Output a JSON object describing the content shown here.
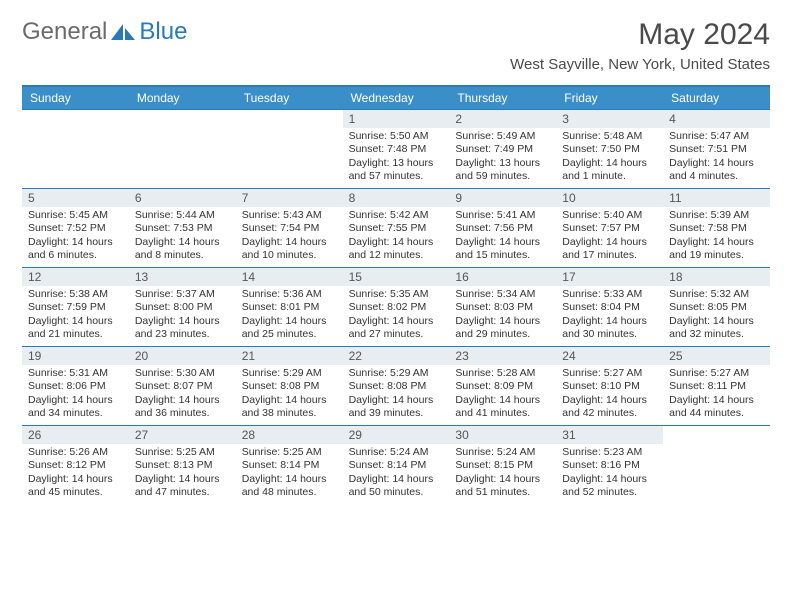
{
  "brand": {
    "left": "General",
    "right": "Blue"
  },
  "title": "May 2024",
  "location": "West Sayville, New York, United States",
  "colors": {
    "accent": "#2a7ab8",
    "header_bg": "#3a8fc9",
    "daynum_bg": "#e8edf1",
    "text_grey": "#4a4a4a"
  },
  "day_headers": [
    "Sunday",
    "Monday",
    "Tuesday",
    "Wednesday",
    "Thursday",
    "Friday",
    "Saturday"
  ],
  "weeks": [
    [
      {
        "num": "",
        "sunrise": "",
        "sunset": "",
        "daylight1": "",
        "daylight2": ""
      },
      {
        "num": "",
        "sunrise": "",
        "sunset": "",
        "daylight1": "",
        "daylight2": ""
      },
      {
        "num": "",
        "sunrise": "",
        "sunset": "",
        "daylight1": "",
        "daylight2": ""
      },
      {
        "num": "1",
        "sunrise": "Sunrise: 5:50 AM",
        "sunset": "Sunset: 7:48 PM",
        "daylight1": "Daylight: 13 hours",
        "daylight2": "and 57 minutes."
      },
      {
        "num": "2",
        "sunrise": "Sunrise: 5:49 AM",
        "sunset": "Sunset: 7:49 PM",
        "daylight1": "Daylight: 13 hours",
        "daylight2": "and 59 minutes."
      },
      {
        "num": "3",
        "sunrise": "Sunrise: 5:48 AM",
        "sunset": "Sunset: 7:50 PM",
        "daylight1": "Daylight: 14 hours",
        "daylight2": "and 1 minute."
      },
      {
        "num": "4",
        "sunrise": "Sunrise: 5:47 AM",
        "sunset": "Sunset: 7:51 PM",
        "daylight1": "Daylight: 14 hours",
        "daylight2": "and 4 minutes."
      }
    ],
    [
      {
        "num": "5",
        "sunrise": "Sunrise: 5:45 AM",
        "sunset": "Sunset: 7:52 PM",
        "daylight1": "Daylight: 14 hours",
        "daylight2": "and 6 minutes."
      },
      {
        "num": "6",
        "sunrise": "Sunrise: 5:44 AM",
        "sunset": "Sunset: 7:53 PM",
        "daylight1": "Daylight: 14 hours",
        "daylight2": "and 8 minutes."
      },
      {
        "num": "7",
        "sunrise": "Sunrise: 5:43 AM",
        "sunset": "Sunset: 7:54 PM",
        "daylight1": "Daylight: 14 hours",
        "daylight2": "and 10 minutes."
      },
      {
        "num": "8",
        "sunrise": "Sunrise: 5:42 AM",
        "sunset": "Sunset: 7:55 PM",
        "daylight1": "Daylight: 14 hours",
        "daylight2": "and 12 minutes."
      },
      {
        "num": "9",
        "sunrise": "Sunrise: 5:41 AM",
        "sunset": "Sunset: 7:56 PM",
        "daylight1": "Daylight: 14 hours",
        "daylight2": "and 15 minutes."
      },
      {
        "num": "10",
        "sunrise": "Sunrise: 5:40 AM",
        "sunset": "Sunset: 7:57 PM",
        "daylight1": "Daylight: 14 hours",
        "daylight2": "and 17 minutes."
      },
      {
        "num": "11",
        "sunrise": "Sunrise: 5:39 AM",
        "sunset": "Sunset: 7:58 PM",
        "daylight1": "Daylight: 14 hours",
        "daylight2": "and 19 minutes."
      }
    ],
    [
      {
        "num": "12",
        "sunrise": "Sunrise: 5:38 AM",
        "sunset": "Sunset: 7:59 PM",
        "daylight1": "Daylight: 14 hours",
        "daylight2": "and 21 minutes."
      },
      {
        "num": "13",
        "sunrise": "Sunrise: 5:37 AM",
        "sunset": "Sunset: 8:00 PM",
        "daylight1": "Daylight: 14 hours",
        "daylight2": "and 23 minutes."
      },
      {
        "num": "14",
        "sunrise": "Sunrise: 5:36 AM",
        "sunset": "Sunset: 8:01 PM",
        "daylight1": "Daylight: 14 hours",
        "daylight2": "and 25 minutes."
      },
      {
        "num": "15",
        "sunrise": "Sunrise: 5:35 AM",
        "sunset": "Sunset: 8:02 PM",
        "daylight1": "Daylight: 14 hours",
        "daylight2": "and 27 minutes."
      },
      {
        "num": "16",
        "sunrise": "Sunrise: 5:34 AM",
        "sunset": "Sunset: 8:03 PM",
        "daylight1": "Daylight: 14 hours",
        "daylight2": "and 29 minutes."
      },
      {
        "num": "17",
        "sunrise": "Sunrise: 5:33 AM",
        "sunset": "Sunset: 8:04 PM",
        "daylight1": "Daylight: 14 hours",
        "daylight2": "and 30 minutes."
      },
      {
        "num": "18",
        "sunrise": "Sunrise: 5:32 AM",
        "sunset": "Sunset: 8:05 PM",
        "daylight1": "Daylight: 14 hours",
        "daylight2": "and 32 minutes."
      }
    ],
    [
      {
        "num": "19",
        "sunrise": "Sunrise: 5:31 AM",
        "sunset": "Sunset: 8:06 PM",
        "daylight1": "Daylight: 14 hours",
        "daylight2": "and 34 minutes."
      },
      {
        "num": "20",
        "sunrise": "Sunrise: 5:30 AM",
        "sunset": "Sunset: 8:07 PM",
        "daylight1": "Daylight: 14 hours",
        "daylight2": "and 36 minutes."
      },
      {
        "num": "21",
        "sunrise": "Sunrise: 5:29 AM",
        "sunset": "Sunset: 8:08 PM",
        "daylight1": "Daylight: 14 hours",
        "daylight2": "and 38 minutes."
      },
      {
        "num": "22",
        "sunrise": "Sunrise: 5:29 AM",
        "sunset": "Sunset: 8:08 PM",
        "daylight1": "Daylight: 14 hours",
        "daylight2": "and 39 minutes."
      },
      {
        "num": "23",
        "sunrise": "Sunrise: 5:28 AM",
        "sunset": "Sunset: 8:09 PM",
        "daylight1": "Daylight: 14 hours",
        "daylight2": "and 41 minutes."
      },
      {
        "num": "24",
        "sunrise": "Sunrise: 5:27 AM",
        "sunset": "Sunset: 8:10 PM",
        "daylight1": "Daylight: 14 hours",
        "daylight2": "and 42 minutes."
      },
      {
        "num": "25",
        "sunrise": "Sunrise: 5:27 AM",
        "sunset": "Sunset: 8:11 PM",
        "daylight1": "Daylight: 14 hours",
        "daylight2": "and 44 minutes."
      }
    ],
    [
      {
        "num": "26",
        "sunrise": "Sunrise: 5:26 AM",
        "sunset": "Sunset: 8:12 PM",
        "daylight1": "Daylight: 14 hours",
        "daylight2": "and 45 minutes."
      },
      {
        "num": "27",
        "sunrise": "Sunrise: 5:25 AM",
        "sunset": "Sunset: 8:13 PM",
        "daylight1": "Daylight: 14 hours",
        "daylight2": "and 47 minutes."
      },
      {
        "num": "28",
        "sunrise": "Sunrise: 5:25 AM",
        "sunset": "Sunset: 8:14 PM",
        "daylight1": "Daylight: 14 hours",
        "daylight2": "and 48 minutes."
      },
      {
        "num": "29",
        "sunrise": "Sunrise: 5:24 AM",
        "sunset": "Sunset: 8:14 PM",
        "daylight1": "Daylight: 14 hours",
        "daylight2": "and 50 minutes."
      },
      {
        "num": "30",
        "sunrise": "Sunrise: 5:24 AM",
        "sunset": "Sunset: 8:15 PM",
        "daylight1": "Daylight: 14 hours",
        "daylight2": "and 51 minutes."
      },
      {
        "num": "31",
        "sunrise": "Sunrise: 5:23 AM",
        "sunset": "Sunset: 8:16 PM",
        "daylight1": "Daylight: 14 hours",
        "daylight2": "and 52 minutes."
      },
      {
        "num": "",
        "sunrise": "",
        "sunset": "",
        "daylight1": "",
        "daylight2": ""
      }
    ]
  ]
}
